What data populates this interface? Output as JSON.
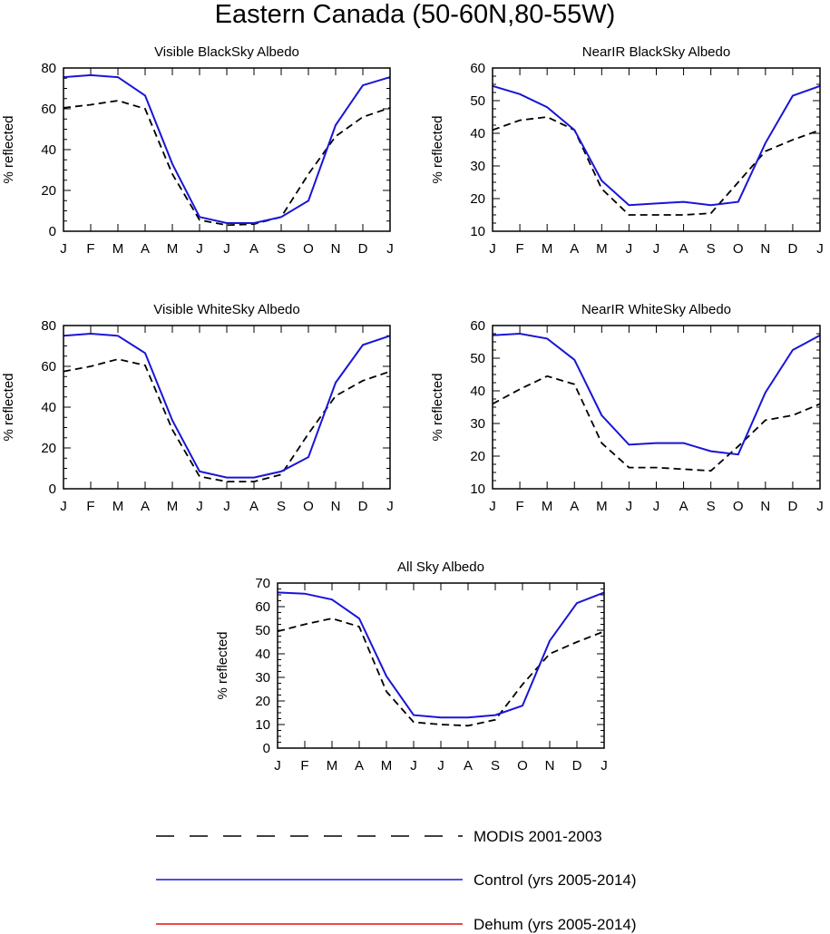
{
  "figure_title": "Eastern Canada (50-60N,80-55W)",
  "colors": {
    "modis": "#000000",
    "control": "#1a14d6",
    "dehum": "#e01010"
  },
  "chart_data": [
    {
      "type": "line",
      "title": "Visible BlackSky Albedo",
      "ylabel": "% reflected",
      "categories": [
        "J",
        "F",
        "M",
        "A",
        "M",
        "J",
        "J",
        "A",
        "S",
        "O",
        "N",
        "D",
        "J"
      ],
      "ylim": [
        0,
        80
      ],
      "yticks": [
        0,
        20,
        40,
        60,
        80
      ],
      "series": [
        {
          "name": "MODIS 2001-2003",
          "values": [
            60.5,
            62,
            64,
            60,
            28,
            5.5,
            3,
            3.5,
            7,
            28,
            46.5,
            56,
            60.5
          ]
        },
        {
          "name": "Control (yrs 2005-2014)",
          "values": [
            75.5,
            76.5,
            75.5,
            66.5,
            33,
            7,
            4,
            4,
            7,
            15,
            52,
            71.5,
            75.5
          ]
        }
      ]
    },
    {
      "type": "line",
      "title": "NearIR BlackSky Albedo",
      "ylabel": "% reflected",
      "categories": [
        "J",
        "F",
        "M",
        "A",
        "M",
        "J",
        "J",
        "A",
        "S",
        "O",
        "N",
        "D",
        "J"
      ],
      "ylim": [
        10,
        60
      ],
      "yticks": [
        10,
        20,
        30,
        40,
        50,
        60
      ],
      "series": [
        {
          "name": "MODIS 2001-2003",
          "values": [
            41,
            44,
            45,
            41,
            23,
            15,
            15,
            15,
            15.5,
            25,
            34.5,
            38,
            41
          ]
        },
        {
          "name": "Control (yrs 2005-2014)",
          "values": [
            54.5,
            52,
            48,
            41,
            25.5,
            18,
            18.5,
            19,
            18,
            19,
            37,
            51.5,
            54.5
          ]
        }
      ]
    },
    {
      "type": "line",
      "title": "Visible WhiteSky Albedo",
      "ylabel": "% reflected",
      "categories": [
        "J",
        "F",
        "M",
        "A",
        "M",
        "J",
        "J",
        "A",
        "S",
        "O",
        "N",
        "D",
        "J"
      ],
      "ylim": [
        0,
        80
      ],
      "yticks": [
        0,
        20,
        40,
        60,
        80
      ],
      "series": [
        {
          "name": "MODIS 2001-2003",
          "values": [
            57.5,
            60,
            63.5,
            60.5,
            29,
            6,
            3.5,
            3.5,
            7,
            27,
            45.5,
            53,
            57.5
          ]
        },
        {
          "name": "Control (yrs 2005-2014)",
          "values": [
            75,
            76,
            75,
            66.5,
            33.5,
            8.5,
            5.5,
            5.5,
            8.5,
            15.5,
            52,
            70.5,
            75
          ]
        }
      ]
    },
    {
      "type": "line",
      "title": "NearIR WhiteSky Albedo",
      "ylabel": "% reflected",
      "categories": [
        "J",
        "F",
        "M",
        "A",
        "M",
        "J",
        "J",
        "A",
        "S",
        "O",
        "N",
        "D",
        "J"
      ],
      "ylim": [
        10,
        60
      ],
      "yticks": [
        10,
        20,
        30,
        40,
        50,
        60
      ],
      "series": [
        {
          "name": "MODIS 2001-2003",
          "values": [
            36,
            40.5,
            44.5,
            42,
            24,
            16.5,
            16.5,
            16,
            15.5,
            23,
            31,
            32.5,
            36
          ]
        },
        {
          "name": "Control (yrs 2005-2014)",
          "values": [
            57,
            57.5,
            56,
            49.5,
            32.5,
            23.5,
            24,
            24,
            21.5,
            20.5,
            39.5,
            52.5,
            57
          ]
        }
      ]
    },
    {
      "type": "line",
      "title": "All Sky Albedo",
      "ylabel": "% reflected",
      "categories": [
        "J",
        "F",
        "M",
        "A",
        "M",
        "J",
        "J",
        "A",
        "S",
        "O",
        "N",
        "D",
        "J"
      ],
      "ylim": [
        0,
        70
      ],
      "yticks": [
        0,
        10,
        20,
        30,
        40,
        50,
        60,
        70
      ],
      "series": [
        {
          "name": "MODIS 2001-2003",
          "values": [
            49.5,
            52.5,
            55,
            51.5,
            24,
            11,
            10,
            9.5,
            12,
            27,
            40,
            45,
            49.5
          ]
        },
        {
          "name": "Control (yrs 2005-2014)",
          "values": [
            66,
            65.5,
            63,
            55,
            30.5,
            14,
            13,
            13,
            14,
            18,
            45.5,
            61.5,
            66
          ]
        }
      ]
    }
  ],
  "legend": [
    {
      "label": "MODIS 2001-2003",
      "style": "dashed"
    },
    {
      "label": "Control (yrs 2005-2014)",
      "style": "solid-blue"
    },
    {
      "label": "Dehum (yrs 2005-2014)",
      "style": "solid-red"
    }
  ]
}
